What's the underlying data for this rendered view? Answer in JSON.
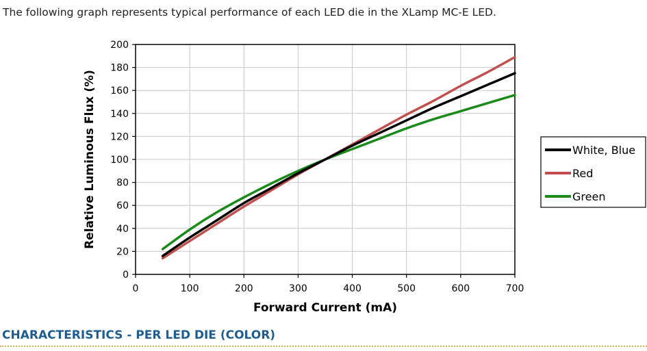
{
  "intro_text": "The following graph represents typical performance of each LED die in the XLamp MC-E LED.",
  "section_heading": "CHARACTERISTICS - PER LED DIE (COLOR)",
  "chart_data": {
    "type": "line",
    "title": "",
    "xlabel": "Forward Current (mA)",
    "ylabel": "Relative Luminous Flux (%)",
    "xlim": [
      0,
      700
    ],
    "ylim": [
      0,
      200
    ],
    "x_ticks": [
      0,
      100,
      200,
      300,
      400,
      500,
      600,
      700
    ],
    "y_ticks": [
      0,
      20,
      40,
      60,
      80,
      100,
      120,
      140,
      160,
      180,
      200
    ],
    "grid": true,
    "legend_position": "right",
    "series": [
      {
        "name": "White, Blue",
        "color": "#000000",
        "x": [
          50,
          100,
          150,
          200,
          250,
          300,
          350,
          400,
          450,
          500,
          550,
          600,
          650,
          700
        ],
        "y": [
          16,
          32,
          47,
          62,
          75,
          88,
          100,
          112,
          123,
          134,
          145,
          155,
          165,
          175
        ]
      },
      {
        "name": "Red",
        "color": "#c0504d",
        "x": [
          50,
          100,
          150,
          200,
          250,
          300,
          350,
          400,
          450,
          500,
          550,
          600,
          650,
          700
        ],
        "y": [
          14,
          29,
          44,
          59,
          73,
          87,
          100,
          113,
          126,
          139,
          151,
          164,
          176,
          189
        ]
      },
      {
        "name": "Green",
        "color": "#1a8a1a",
        "x": [
          50,
          100,
          150,
          200,
          250,
          300,
          350,
          400,
          450,
          500,
          550,
          600,
          650,
          700
        ],
        "y": [
          22,
          39,
          54,
          67,
          79,
          90,
          100,
          109,
          118,
          127,
          135,
          142,
          149,
          156
        ]
      }
    ]
  }
}
